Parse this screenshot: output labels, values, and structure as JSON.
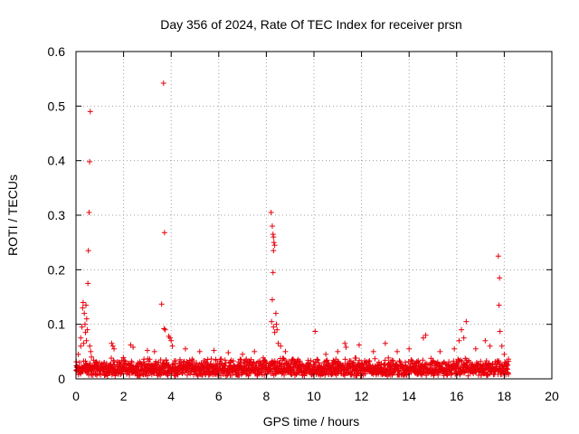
{
  "chart_data": {
    "type": "scatter",
    "title": "Day 356 of 2024, Rate Of TEC Index for receiver prsn",
    "xlabel": "GPS time / hours",
    "ylabel": "ROTI / TECUs",
    "xlim": [
      0,
      20
    ],
    "ylim": [
      0,
      0.6
    ],
    "xticks": [
      0,
      2,
      4,
      6,
      8,
      10,
      12,
      14,
      16,
      18,
      20
    ],
    "yticks": [
      0,
      0.1,
      0.2,
      0.3,
      0.4,
      0.5,
      0.6
    ],
    "ytick_labels": [
      "0",
      "0.1",
      "0.2",
      "0.3",
      "0.4",
      "0.5",
      "0.6"
    ],
    "grid": true,
    "marker": "+",
    "color": "#e8000b",
    "series": [
      {
        "name": "ROTI",
        "points": [
          [
            0.05,
            0.022
          ],
          [
            0.1,
            0.045
          ],
          [
            0.15,
            0.03
          ],
          [
            0.2,
            0.06
          ],
          [
            0.25,
            0.095
          ],
          [
            0.28,
            0.13
          ],
          [
            0.3,
            0.14
          ],
          [
            0.35,
            0.12
          ],
          [
            0.38,
            0.1
          ],
          [
            0.4,
            0.085
          ],
          [
            0.42,
            0.135
          ],
          [
            0.45,
            0.11
          ],
          [
            0.48,
            0.09
          ],
          [
            0.5,
            0.175
          ],
          [
            0.52,
            0.235
          ],
          [
            0.55,
            0.305
          ],
          [
            0.57,
            0.398
          ],
          [
            0.6,
            0.49
          ],
          [
            0.62,
            0.05
          ],
          [
            0.65,
            0.04
          ],
          [
            0.2,
            0.075
          ],
          [
            0.32,
            0.065
          ],
          [
            0.44,
            0.07
          ],
          [
            0.58,
            0.06
          ],
          [
            1.5,
            0.065
          ],
          [
            1.55,
            0.06
          ],
          [
            1.6,
            0.055
          ],
          [
            2.3,
            0.062
          ],
          [
            2.4,
            0.058
          ],
          [
            3.0,
            0.052
          ],
          [
            3.3,
            0.05
          ],
          [
            3.6,
            0.137
          ],
          [
            3.7,
            0.092
          ],
          [
            3.72,
            0.268
          ],
          [
            3.75,
            0.09
          ],
          [
            3.68,
            0.542
          ],
          [
            3.9,
            0.078
          ],
          [
            3.95,
            0.075
          ],
          [
            4.0,
            0.07
          ],
          [
            4.05,
            0.06
          ],
          [
            4.6,
            0.055
          ],
          [
            5.2,
            0.05
          ],
          [
            5.8,
            0.052
          ],
          [
            6.4,
            0.048
          ],
          [
            7.0,
            0.045
          ],
          [
            7.5,
            0.05
          ],
          [
            8.2,
            0.305
          ],
          [
            8.25,
            0.28
          ],
          [
            8.28,
            0.265
          ],
          [
            8.3,
            0.26
          ],
          [
            8.32,
            0.25
          ],
          [
            8.35,
            0.245
          ],
          [
            8.3,
            0.235
          ],
          [
            8.28,
            0.195
          ],
          [
            8.25,
            0.145
          ],
          [
            8.22,
            0.105
          ],
          [
            8.3,
            0.095
          ],
          [
            8.35,
            0.085
          ],
          [
            8.4,
            0.12
          ],
          [
            8.42,
            0.1
          ],
          [
            8.45,
            0.09
          ],
          [
            8.5,
            0.065
          ],
          [
            8.6,
            0.06
          ],
          [
            8.8,
            0.05
          ],
          [
            10.05,
            0.087
          ],
          [
            10.5,
            0.045
          ],
          [
            11.0,
            0.05
          ],
          [
            11.3,
            0.065
          ],
          [
            11.35,
            0.058
          ],
          [
            11.9,
            0.062
          ],
          [
            12.5,
            0.05
          ],
          [
            13.0,
            0.065
          ],
          [
            13.5,
            0.05
          ],
          [
            14.0,
            0.055
          ],
          [
            14.6,
            0.075
          ],
          [
            14.7,
            0.08
          ],
          [
            15.3,
            0.05
          ],
          [
            15.9,
            0.055
          ],
          [
            16.1,
            0.07
          ],
          [
            16.2,
            0.09
          ],
          [
            16.3,
            0.075
          ],
          [
            16.4,
            0.105
          ],
          [
            16.8,
            0.055
          ],
          [
            17.2,
            0.07
          ],
          [
            17.4,
            0.06
          ],
          [
            17.75,
            0.225
          ],
          [
            17.8,
            0.185
          ],
          [
            17.78,
            0.135
          ],
          [
            17.82,
            0.087
          ],
          [
            17.9,
            0.06
          ],
          [
            18.0,
            0.045
          ],
          [
            18.1,
            0.03
          ]
        ],
        "baseline_band": {
          "x_range": [
            0,
            18.2
          ],
          "y_range": [
            0.005,
            0.04
          ],
          "description": "dense cluster of low ROTI values throughout the observation period"
        }
      }
    ]
  }
}
